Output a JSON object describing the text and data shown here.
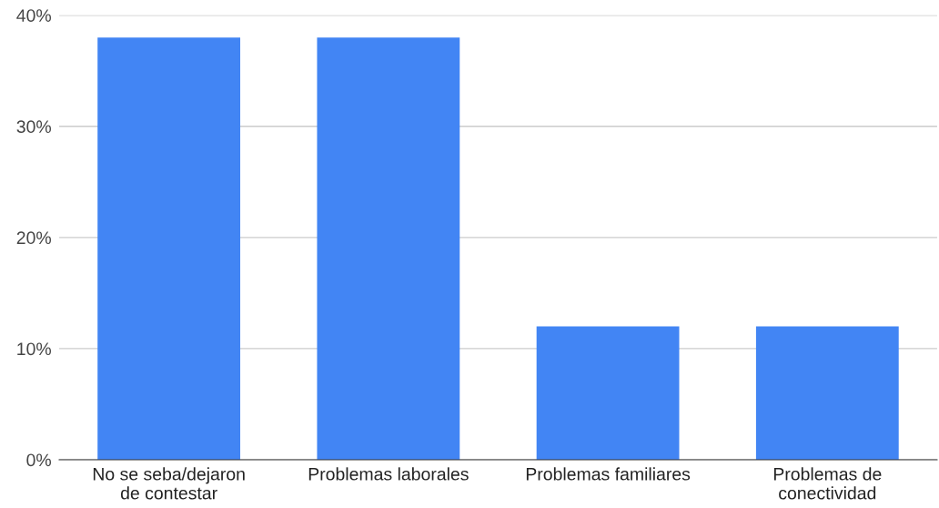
{
  "chart_data": {
    "type": "bar",
    "categories": [
      "No se seba/dejaron\nde contestar",
      "Problemas laborales",
      "Problemas familiares",
      "Problemas de\nconectividad"
    ],
    "values": [
      38,
      38,
      12,
      12
    ],
    "color": "#4285f4",
    "ylim": [
      0,
      40
    ],
    "yticks": [
      {
        "value": 0,
        "label": "0%"
      },
      {
        "value": 10,
        "label": "10%"
      },
      {
        "value": 20,
        "label": "20%"
      },
      {
        "value": 30,
        "label": "30%"
      },
      {
        "value": 40,
        "label": "40%"
      }
    ],
    "grid": "y"
  }
}
